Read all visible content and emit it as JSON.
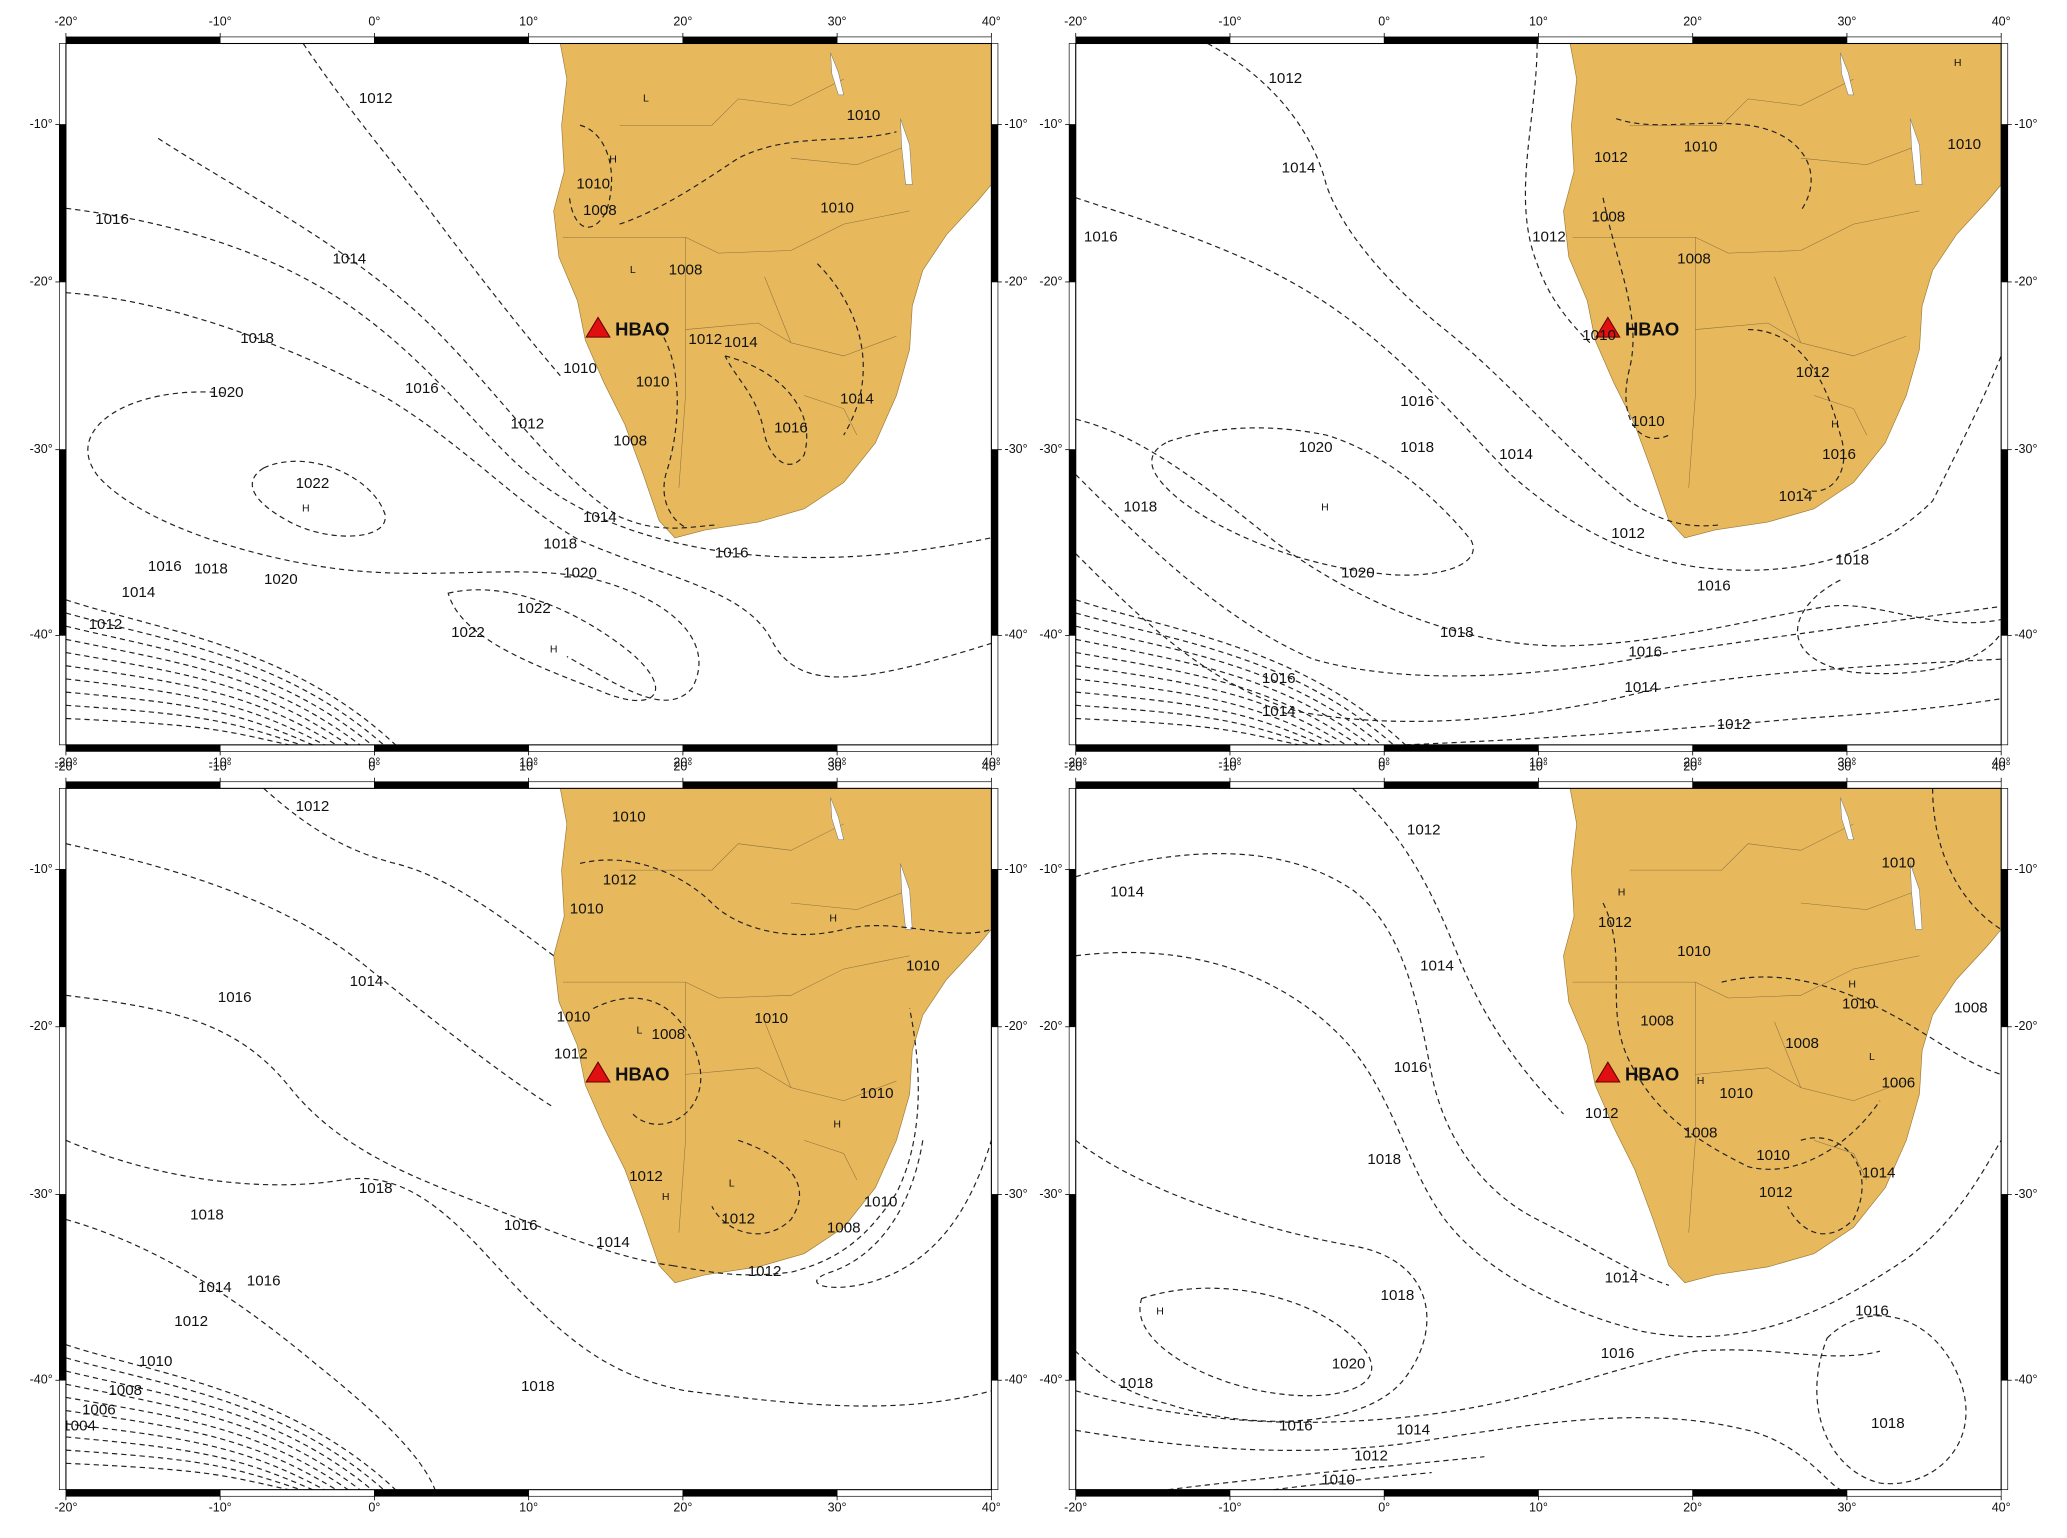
{
  "station": "HBAO",
  "lonlim": [
    -20,
    40
  ],
  "latlim": [
    -45.3,
    -4.7
  ],
  "lon_ticks": [
    {
      "value": -20,
      "label": "-20°"
    },
    {
      "value": -10,
      "label": "-10°"
    },
    {
      "value": 0,
      "label": "0°"
    },
    {
      "value": 10,
      "label": "10°"
    },
    {
      "value": 20,
      "label": "20°"
    },
    {
      "value": 30,
      "label": "30°"
    },
    {
      "value": 40,
      "label": "40°"
    }
  ],
  "lat_ticks": [
    {
      "value": -10,
      "label": "-10°"
    },
    {
      "value": -20,
      "label": "-20°"
    },
    {
      "value": -30,
      "label": "-30°"
    },
    {
      "value": -40,
      "label": "-40°"
    }
  ],
  "panels": [
    {
      "contour_labels": [
        "1012",
        "1016",
        "1014",
        "1018",
        "1020",
        "1016",
        "1012",
        "1022",
        "1014",
        "1018",
        "1016",
        "1020",
        "1022",
        "1022",
        "1016",
        "1018",
        "1020",
        "1014",
        "1012",
        "1010",
        "1010",
        "1008",
        "1010",
        "1008",
        "1012",
        "1014",
        "1010",
        "1014",
        "1016",
        "1008",
        "1010"
      ],
      "centers": [
        "H",
        "H",
        "H",
        "L",
        "L"
      ]
    },
    {
      "contour_labels": [
        "1012",
        "1014",
        "1016",
        "1012",
        "1010",
        "1012",
        "1008",
        "1008",
        "1010",
        "1016",
        "1018",
        "1014",
        "1010",
        "1012",
        "1016",
        "1014",
        "1020",
        "1018",
        "1020",
        "1012",
        "1016",
        "1018",
        "1018",
        "1016",
        "1016",
        "1014",
        "1014",
        "1012",
        "1010"
      ],
      "centers": [
        "H",
        "H",
        "H"
      ]
    },
    {
      "contour_labels": [
        "1012",
        "1010",
        "1012",
        "1010",
        "1014",
        "1016",
        "1010",
        "1010",
        "1012",
        "1008",
        "1010",
        "1010",
        "1018",
        "1018",
        "1016",
        "1014",
        "1012",
        "1012",
        "1008",
        "1010",
        "1012",
        "1016",
        "1014",
        "1012",
        "1010",
        "1018",
        "1008",
        "1006",
        "1004"
      ],
      "centers": [
        "H",
        "H",
        "H",
        "L",
        "L"
      ]
    },
    {
      "contour_labels": [
        "1012",
        "1014",
        "1014",
        "1016",
        "1018",
        "1010",
        "1012",
        "1010",
        "1010",
        "1008",
        "1008",
        "1008",
        "1006",
        "1010",
        "1012",
        "1008",
        "1010",
        "1012",
        "1014",
        "1018",
        "1014",
        "1016",
        "1016",
        "1020",
        "1018",
        "1016",
        "1014",
        "1012",
        "1010",
        "1018"
      ],
      "centers": [
        "H",
        "H",
        "H",
        "H",
        "L"
      ]
    }
  ]
}
